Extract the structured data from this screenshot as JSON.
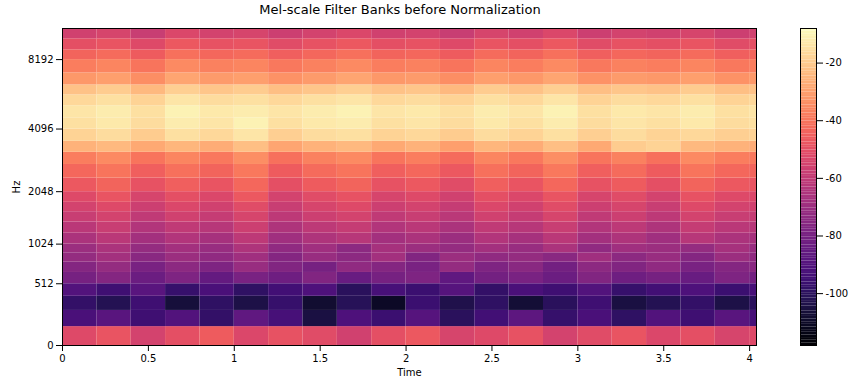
{
  "chart_data": {
    "type": "heatmap",
    "title": "Mel-scale Filter Banks before Normalization",
    "x_label": "Time",
    "y_label": "Hz",
    "color": "magma",
    "xlim": [
      0,
      4.04
    ],
    "xticks": [
      0,
      0.5,
      1,
      1.5,
      2,
      2.5,
      3,
      3.5,
      4
    ],
    "ylim": [
      0,
      11025
    ],
    "yticks": [
      0,
      512,
      1024,
      2048,
      4096,
      8192
    ],
    "x_bins": [
      0,
      0.2,
      0.4,
      0.6,
      0.8,
      1,
      1.2,
      1.4,
      1.6,
      1.8,
      2,
      2.2,
      2.4,
      2.6,
      2.8,
      3,
      3.2,
      3.4,
      3.6,
      3.8,
      4,
      4.04
    ],
    "y_bins": [
      0,
      128,
      256,
      384,
      512,
      640,
      768,
      896,
      1024,
      1200,
      1400,
      1600,
      1800,
      2048,
      2400,
      2800,
      3200,
      3600,
      4096,
      4600,
      5200,
      5800,
      6400,
      7200,
      8192,
      9000,
      10000,
      11025
    ],
    "values": [
      [
        -52,
        -48,
        -55,
        -50,
        -46,
        -53,
        -49,
        -51,
        -56,
        -50,
        -47,
        -54,
        -52,
        -49,
        -55,
        -51,
        -48,
        -53,
        -50,
        -54,
        -52
      ],
      [
        -92,
        -88,
        -95,
        -90,
        -98,
        -86,
        -93,
        -105,
        -91,
        -96,
        -89,
        -100,
        -94,
        -87,
        -97,
        -92,
        -99,
        -90,
        -95,
        -88,
        -93
      ],
      [
        -98,
        -102,
        -95,
        -106,
        -99,
        -104,
        -97,
        -108,
        -101,
        -110,
        -96,
        -103,
        -99,
        -107,
        -100,
        -95,
        -105,
        -102,
        -98,
        -104,
        -100
      ],
      [
        -90,
        -95,
        -88,
        -97,
        -92,
        -99,
        -94,
        -91,
        -100,
        -93,
        -96,
        -89,
        -98,
        -92,
        -95,
        -90,
        -97,
        -94,
        -91,
        -96,
        -93
      ],
      [
        -80,
        -76,
        -83,
        -78,
        -85,
        -79,
        -82,
        -77,
        -84,
        -80,
        -78,
        -86,
        -81,
        -79,
        -83,
        -77,
        -82,
        -80,
        -84,
        -78,
        -81
      ],
      [
        -76,
        -72,
        -79,
        -74,
        -78,
        -71,
        -77,
        -80,
        -73,
        -76,
        -79,
        -72,
        -78,
        -75,
        -81,
        -74,
        -77,
        -73,
        -79,
        -76,
        -75
      ],
      [
        -72,
        -68,
        -75,
        -70,
        -73,
        -69,
        -76,
        -71,
        -74,
        -68,
        -77,
        -70,
        -73,
        -72,
        -75,
        -69,
        -74,
        -71,
        -76,
        -70,
        -73
      ],
      [
        -70,
        -66,
        -72,
        -68,
        -71,
        -65,
        -73,
        -69,
        -74,
        -67,
        -70,
        -72,
        -68,
        -71,
        -66,
        -73,
        -69,
        -70,
        -72,
        -67,
        -71
      ],
      [
        -66,
        -62,
        -68,
        -64,
        -67,
        -61,
        -69,
        -65,
        -63,
        -68,
        -66,
        -70,
        -64,
        -67,
        -62,
        -68,
        -65,
        -69,
        -63,
        -66,
        -67
      ],
      [
        -62,
        -58,
        -64,
        -60,
        -63,
        -57,
        -65,
        -61,
        -59,
        -64,
        -62,
        -66,
        -60,
        -63,
        -58,
        -64,
        -61,
        -65,
        -59,
        -62,
        -63
      ],
      [
        -58,
        -55,
        -60,
        -56,
        -59,
        -54,
        -61,
        -57,
        -55,
        -60,
        -58,
        -62,
        -56,
        -59,
        -54,
        -60,
        -57,
        -61,
        -55,
        -58,
        -59
      ],
      [
        -55,
        -52,
        -57,
        -53,
        -56,
        -51,
        -58,
        -54,
        -52,
        -57,
        -55,
        -59,
        -53,
        -56,
        -51,
        -57,
        -54,
        -58,
        -52,
        -55,
        -56
      ],
      [
        -52,
        -48,
        -54,
        -50,
        -53,
        -47,
        -55,
        -51,
        -49,
        -54,
        -52,
        -56,
        -50,
        -53,
        -48,
        -54,
        -51,
        -55,
        -49,
        -52,
        -53
      ],
      [
        -47,
        -44,
        -49,
        -45,
        -48,
        -43,
        -50,
        -46,
        -44,
        -49,
        -47,
        -51,
        -45,
        -48,
        -43,
        -49,
        -46,
        -50,
        -44,
        -47,
        -48
      ],
      [
        -43,
        -40,
        -45,
        -41,
        -44,
        -39,
        -46,
        -42,
        -40,
        -45,
        -43,
        -47,
        -41,
        -44,
        -39,
        -45,
        -42,
        -46,
        -40,
        -43,
        -44
      ],
      [
        -38,
        -35,
        -40,
        -36,
        -39,
        -34,
        -41,
        -37,
        -35,
        -40,
        -38,
        -42,
        -36,
        -39,
        -34,
        -40,
        -37,
        -41,
        -35,
        -38,
        -39
      ],
      [
        -26,
        -24,
        -28,
        -25,
        -27,
        -23,
        -29,
        -26,
        -24,
        -28,
        -26,
        -30,
        -25,
        -27,
        -23,
        -28,
        -20,
        -18,
        -24,
        -26,
        -27
      ],
      [
        -18,
        -16,
        -20,
        -15,
        -17,
        -14,
        -19,
        -16,
        -15,
        -18,
        -17,
        -20,
        -16,
        -18,
        -15,
        -19,
        -16,
        -18,
        -17,
        -19,
        -18
      ],
      [
        -15,
        -13,
        -16,
        -12,
        -14,
        -11,
        -15,
        -13,
        -12,
        -15,
        -14,
        -16,
        -13,
        -15,
        -12,
        -16,
        -14,
        -15,
        -13,
        -16,
        -15
      ],
      [
        -14,
        -12,
        -15,
        -11,
        -13,
        -12,
        -14,
        -12,
        -11,
        -14,
        -13,
        -15,
        -12,
        -14,
        -11,
        -15,
        -13,
        -14,
        -12,
        -15,
        -14
      ],
      [
        -17,
        -15,
        -18,
        -14,
        -16,
        -15,
        -17,
        -15,
        -14,
        -17,
        -16,
        -18,
        -15,
        -17,
        -14,
        -18,
        -16,
        -17,
        -15,
        -18,
        -17
      ],
      [
        -22,
        -20,
        -24,
        -19,
        -21,
        -20,
        -23,
        -21,
        -19,
        -22,
        -21,
        -24,
        -20,
        -22,
        -19,
        -23,
        -21,
        -22,
        -20,
        -23,
        -22
      ],
      [
        -32,
        -30,
        -34,
        -29,
        -31,
        -30,
        -33,
        -31,
        -29,
        -32,
        -31,
        -34,
        -30,
        -32,
        -29,
        -33,
        -31,
        -32,
        -30,
        -33,
        -32
      ],
      [
        -38,
        -36,
        -40,
        -35,
        -37,
        -36,
        -39,
        -37,
        -35,
        -38,
        -37,
        -40,
        -36,
        -38,
        -35,
        -39,
        -37,
        -38,
        -36,
        -39,
        -38
      ],
      [
        -44,
        -42,
        -46,
        -41,
        -43,
        -42,
        -45,
        -43,
        -41,
        -44,
        -43,
        -46,
        -42,
        -44,
        -41,
        -45,
        -43,
        -44,
        -42,
        -45,
        -44
      ],
      [
        -50,
        -48,
        -52,
        -47,
        -49,
        -48,
        -51,
        -49,
        -47,
        -50,
        -49,
        -52,
        -48,
        -50,
        -47,
        -51,
        -49,
        -50,
        -48,
        -51,
        -50
      ],
      [
        -56,
        -54,
        -58,
        -53,
        -55,
        -54,
        -57,
        -55,
        -53,
        -56,
        -55,
        -58,
        -54,
        -56,
        -53,
        -57,
        -55,
        -56,
        -54,
        -57,
        -56
      ]
    ],
    "colorbar": {
      "range": [
        -118,
        -8
      ],
      "ticks": [
        -100,
        -80,
        -60,
        -40,
        -20
      ]
    }
  }
}
